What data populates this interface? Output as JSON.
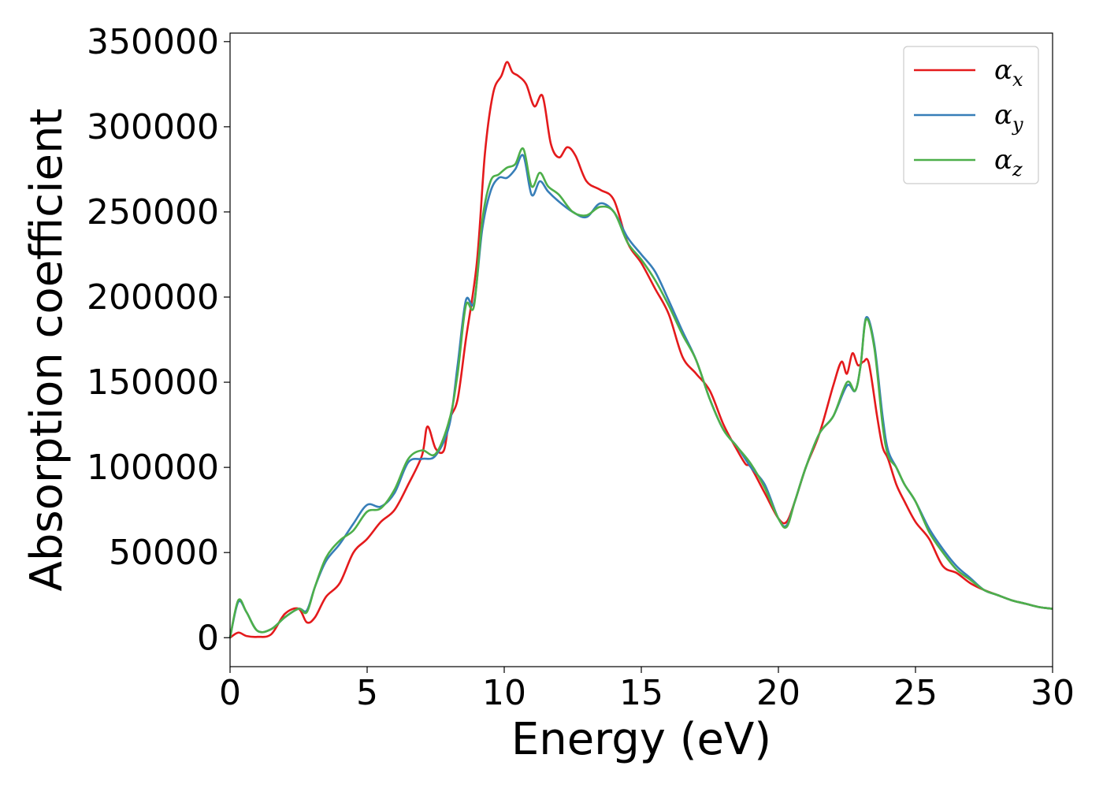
{
  "chart_data": {
    "type": "line",
    "title": "",
    "xlabel": "Energy (eV)",
    "ylabel": "Absorption coefficient",
    "xlim": [
      0,
      30
    ],
    "ylim": [
      -17000,
      355000
    ],
    "xticks": [
      0,
      5,
      10,
      15,
      20,
      25,
      30
    ],
    "yticks": [
      0,
      50000,
      100000,
      150000,
      200000,
      250000,
      300000,
      350000
    ],
    "grid": false,
    "legend_position": "top-right",
    "series": [
      {
        "name": "α",
        "subscript": "x",
        "color": "#e41a1c",
        "x": [
          0,
          0.3,
          0.6,
          1.0,
          1.5,
          2.0,
          2.5,
          2.8,
          3.1,
          3.5,
          4.0,
          4.5,
          5.0,
          5.5,
          6.0,
          6.5,
          7.0,
          7.2,
          7.5,
          7.8,
          8.0,
          8.3,
          8.6,
          9.0,
          9.3,
          9.6,
          9.9,
          10.1,
          10.3,
          10.5,
          10.8,
          11.1,
          11.4,
          11.7,
          12.0,
          12.3,
          12.6,
          13.0,
          13.5,
          14.0,
          14.5,
          15.0,
          15.5,
          16.0,
          16.5,
          17.0,
          17.5,
          18.0,
          18.5,
          18.8,
          19.0,
          19.5,
          20.0,
          20.3,
          20.6,
          21.0,
          21.5,
          22.0,
          22.3,
          22.5,
          22.7,
          22.9,
          23.1,
          23.3,
          23.6,
          23.8,
          24.0,
          24.3,
          24.6,
          25.0,
          25.5,
          26.0,
          26.5,
          27.0,
          27.5,
          28.0,
          28.5,
          29.0,
          29.5,
          30.0
        ],
        "values": [
          0,
          3000,
          1000,
          500,
          2000,
          14000,
          17000,
          9000,
          12000,
          24000,
          32000,
          50000,
          58000,
          68000,
          75000,
          90000,
          107000,
          124000,
          111000,
          110000,
          128000,
          140000,
          175000,
          220000,
          285000,
          320000,
          330000,
          338000,
          332000,
          330000,
          325000,
          312000,
          318000,
          290000,
          282000,
          288000,
          283000,
          268000,
          263000,
          257000,
          232000,
          220000,
          205000,
          190000,
          165000,
          155000,
          145000,
          125000,
          110000,
          102000,
          100000,
          85000,
          70000,
          68000,
          80000,
          100000,
          120000,
          148000,
          162000,
          155000,
          167000,
          160000,
          162000,
          161000,
          130000,
          112000,
          105000,
          90000,
          80000,
          68000,
          58000,
          42000,
          38000,
          32000,
          28000,
          25000,
          22000,
          20000,
          18000,
          17000
        ]
      },
      {
        "name": "α",
        "subscript": "y",
        "color": "#377eb8",
        "x": [
          0,
          0.3,
          0.6,
          1.0,
          1.5,
          2.0,
          2.5,
          2.8,
          3.1,
          3.5,
          4.0,
          4.5,
          5.0,
          5.5,
          6.0,
          6.5,
          7.0,
          7.5,
          8.0,
          8.3,
          8.6,
          8.9,
          9.2,
          9.5,
          9.8,
          10.1,
          10.4,
          10.7,
          11.0,
          11.3,
          11.6,
          12.0,
          12.5,
          13.0,
          13.5,
          14.0,
          14.5,
          15.0,
          15.5,
          16.0,
          16.5,
          17.0,
          17.5,
          18.0,
          18.5,
          19.0,
          19.5,
          20.0,
          20.3,
          20.6,
          21.0,
          21.5,
          22.0,
          22.5,
          22.8,
          23.0,
          23.2,
          23.5,
          23.8,
          24.0,
          24.3,
          24.6,
          25.0,
          25.5,
          26.0,
          26.5,
          27.0,
          27.5,
          28.0,
          28.5,
          29.0,
          29.5,
          30.0
        ],
        "values": [
          0,
          21000,
          15000,
          4000,
          5000,
          12000,
          17000,
          16000,
          30000,
          45000,
          55000,
          67000,
          78000,
          77000,
          85000,
          103000,
          105000,
          107000,
          125000,
          160000,
          198000,
          197000,
          240000,
          262000,
          270000,
          270000,
          275000,
          283000,
          260000,
          268000,
          262000,
          256000,
          250000,
          247000,
          255000,
          250000,
          235000,
          225000,
          215000,
          198000,
          180000,
          163000,
          140000,
          122000,
          112000,
          100000,
          90000,
          70000,
          66000,
          80000,
          100000,
          120000,
          130000,
          148000,
          145000,
          160000,
          188000,
          172000,
          130000,
          110000,
          100000,
          90000,
          80000,
          64000,
          52000,
          42000,
          35000,
          28000,
          25000,
          22000,
          20000,
          18000,
          17000
        ]
      },
      {
        "name": "α",
        "subscript": "z",
        "color": "#4daf4a",
        "x": [
          0,
          0.3,
          0.6,
          1.0,
          1.5,
          2.0,
          2.5,
          2.8,
          3.1,
          3.5,
          4.0,
          4.5,
          5.0,
          5.5,
          6.0,
          6.5,
          7.0,
          7.5,
          8.0,
          8.3,
          8.6,
          8.9,
          9.2,
          9.5,
          9.8,
          10.1,
          10.4,
          10.7,
          11.0,
          11.3,
          11.6,
          12.0,
          12.5,
          13.0,
          13.5,
          14.0,
          14.5,
          15.0,
          15.5,
          16.0,
          16.5,
          17.0,
          17.5,
          18.0,
          18.5,
          19.0,
          19.5,
          20.0,
          20.3,
          20.6,
          21.0,
          21.5,
          22.0,
          22.5,
          22.8,
          23.0,
          23.2,
          23.5,
          23.8,
          24.0,
          24.3,
          24.6,
          25.0,
          25.5,
          26.0,
          26.5,
          27.0,
          27.5,
          28.0,
          28.5,
          29.0,
          29.5,
          30.0
        ],
        "values": [
          0,
          22000,
          15000,
          4000,
          5000,
          12000,
          17000,
          15000,
          30000,
          47000,
          57000,
          63000,
          74000,
          76000,
          87000,
          105000,
          110000,
          108000,
          128000,
          155000,
          195000,
          195000,
          245000,
          268000,
          272000,
          276000,
          278000,
          287000,
          265000,
          273000,
          265000,
          260000,
          250000,
          248000,
          253000,
          250000,
          232000,
          222000,
          210000,
          195000,
          178000,
          163000,
          140000,
          122000,
          112000,
          102000,
          88000,
          70000,
          65000,
          80000,
          100000,
          120000,
          130000,
          150000,
          145000,
          160000,
          187000,
          170000,
          125000,
          107000,
          100000,
          90000,
          80000,
          62000,
          50000,
          40000,
          34000,
          28000,
          25000,
          22000,
          20000,
          18000,
          17000
        ]
      }
    ]
  }
}
